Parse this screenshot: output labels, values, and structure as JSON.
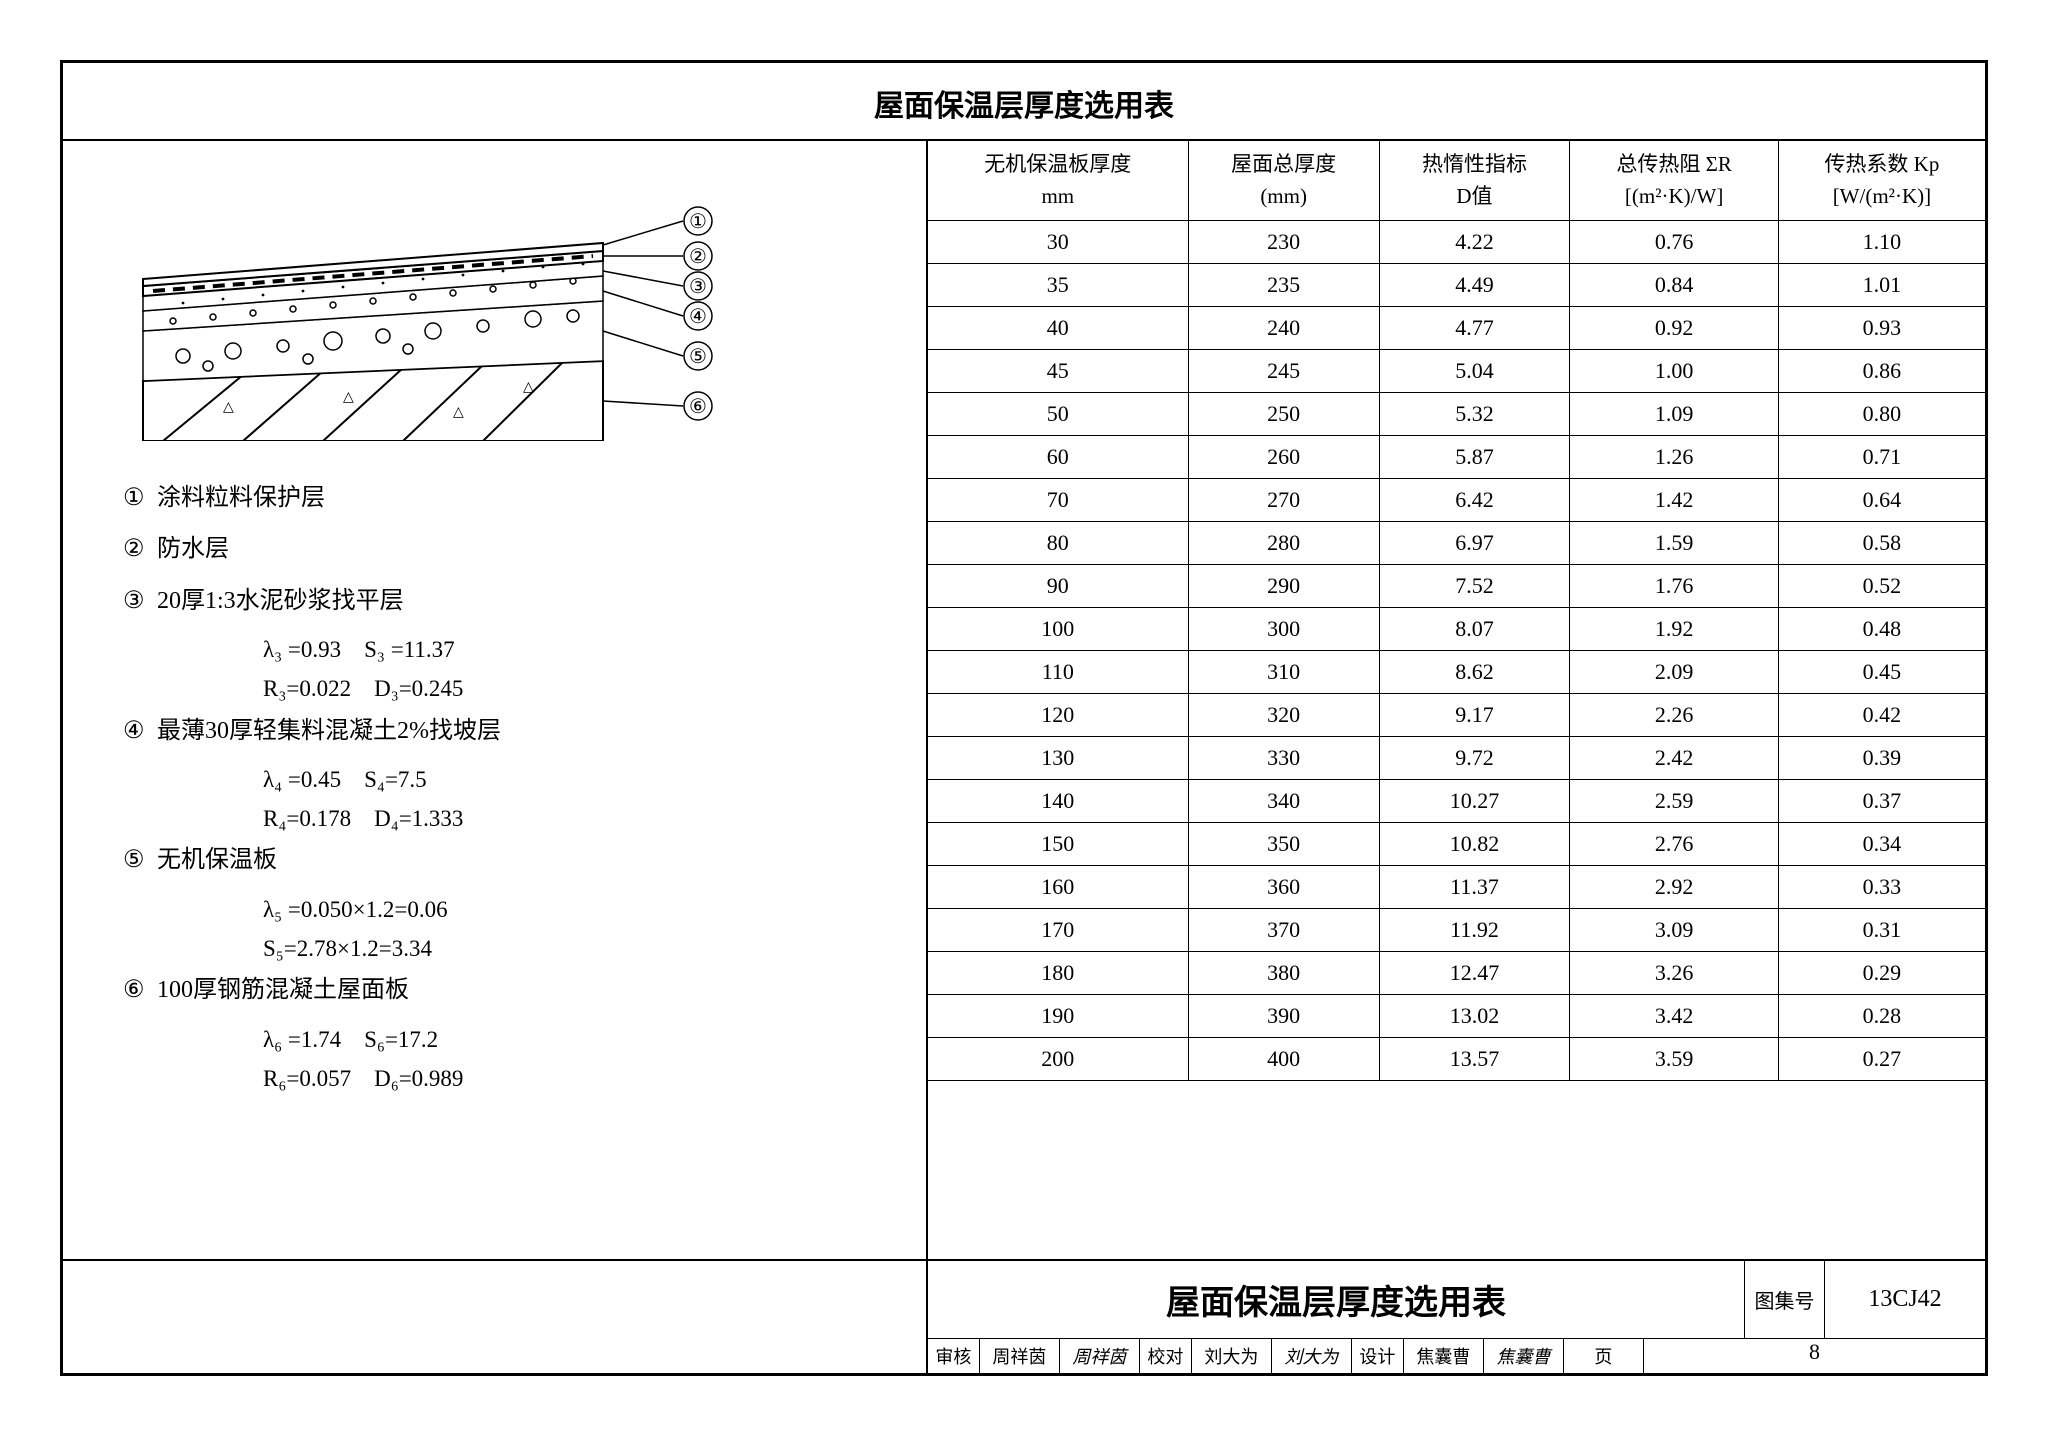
{
  "title": "屋面保温层厚度选用表",
  "diagram_labels": [
    "①",
    "②",
    "③",
    "④",
    "⑤",
    "⑥"
  ],
  "legend": [
    {
      "num": "①",
      "text": "涂料粒料保护层",
      "subs": []
    },
    {
      "num": "②",
      "text": "防水层",
      "subs": []
    },
    {
      "num": "③",
      "text": "20厚1:3水泥砂浆找平层",
      "subs": [
        "λ₃ =0.93　S₃ =11.37",
        "R₃=0.022　D₃=0.245"
      ]
    },
    {
      "num": "④",
      "text": "最薄30厚轻集料混凝土2%找坡层",
      "subs": [
        "λ₄ =0.45　S₄=7.5",
        "R₄=0.178　D₄=1.333"
      ]
    },
    {
      "num": "⑤",
      "text": "无机保温板",
      "subs": [
        "λ₅ =0.050×1.2=0.06",
        "S₅=2.78×1.2=3.34"
      ]
    },
    {
      "num": "⑥",
      "text": "100厚钢筋混凝土屋面板",
      "subs": [
        "λ₆ =1.74　S₆=17.2",
        "R₆=0.057　D₆=0.989"
      ]
    }
  ],
  "columns": [
    "无机保温板厚度\nmm",
    "屋面总厚度\n(mm)",
    "热惰性指标\nD值",
    "总传热阻 ΣR\n[(m²·K)/W]",
    "传热系数 Kp\n[W/(m²·K)]"
  ],
  "rows": [
    [
      "30",
      "230",
      "4.22",
      "0.76",
      "1.10"
    ],
    [
      "35",
      "235",
      "4.49",
      "0.84",
      "1.01"
    ],
    [
      "40",
      "240",
      "4.77",
      "0.92",
      "0.93"
    ],
    [
      "45",
      "245",
      "5.04",
      "1.00",
      "0.86"
    ],
    [
      "50",
      "250",
      "5.32",
      "1.09",
      "0.80"
    ],
    [
      "60",
      "260",
      "5.87",
      "1.26",
      "0.71"
    ],
    [
      "70",
      "270",
      "6.42",
      "1.42",
      "0.64"
    ],
    [
      "80",
      "280",
      "6.97",
      "1.59",
      "0.58"
    ],
    [
      "90",
      "290",
      "7.52",
      "1.76",
      "0.52"
    ],
    [
      "100",
      "300",
      "8.07",
      "1.92",
      "0.48"
    ],
    [
      "110",
      "310",
      "8.62",
      "2.09",
      "0.45"
    ],
    [
      "120",
      "320",
      "9.17",
      "2.26",
      "0.42"
    ],
    [
      "130",
      "330",
      "9.72",
      "2.42",
      "0.39"
    ],
    [
      "140",
      "340",
      "10.27",
      "2.59",
      "0.37"
    ],
    [
      "150",
      "350",
      "10.82",
      "2.76",
      "0.34"
    ],
    [
      "160",
      "360",
      "11.37",
      "2.92",
      "0.33"
    ],
    [
      "170",
      "370",
      "11.92",
      "3.09",
      "0.31"
    ],
    [
      "180",
      "380",
      "12.47",
      "3.26",
      "0.29"
    ],
    [
      "190",
      "390",
      "13.02",
      "3.42",
      "0.28"
    ],
    [
      "200",
      "400",
      "13.57",
      "3.59",
      "0.27"
    ]
  ],
  "footer": {
    "title": "屋面保温层厚度选用表",
    "code_label": "图集号",
    "code": "13CJ42",
    "sigs": [
      {
        "label": "审核",
        "name": "周祥茵",
        "sign": "周祥茵"
      },
      {
        "label": "校对",
        "name": "刘大为",
        "sign": "刘大为"
      },
      {
        "label": "设计",
        "name": "焦囊曹",
        "sign": "焦囊曹"
      }
    ],
    "page_label": "页",
    "page_num": "8"
  }
}
